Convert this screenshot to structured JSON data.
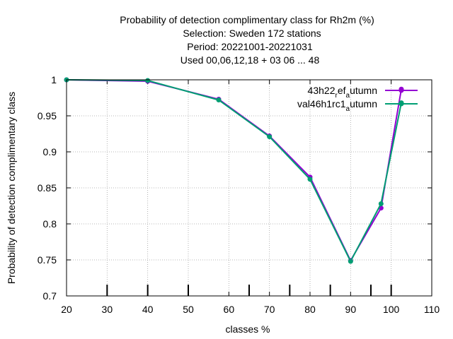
{
  "chart_data": {
    "type": "line",
    "title_lines": [
      "Probability of detection complimentary class  for Rh2m (%)",
      "Selection: Sweden     172 stations",
      "Period: 20221001-20221031",
      "Used  00,06,12,18  + 03 06 ... 48"
    ],
    "xlabel": "classes %",
    "ylabel": "Probability of detection complimentary class",
    "xlim": [
      20,
      110
    ],
    "ylim": [
      0.7,
      1.0
    ],
    "x_ticks": [
      20,
      30,
      40,
      50,
      60,
      70,
      80,
      90,
      100,
      110
    ],
    "y_ticks": [
      0.7,
      0.75,
      0.8,
      0.85,
      0.9,
      0.95,
      1.0
    ],
    "y_tick_labels": [
      "0.7",
      "0.75",
      "0.8",
      "0.85",
      "0.9",
      "0.95",
      "1"
    ],
    "class_marks": [
      30,
      40,
      50,
      65,
      75,
      85,
      95,
      100
    ],
    "grid": true,
    "legend_position": "top-right",
    "series": [
      {
        "name_main": "43h22",
        "name_sub1": "r",
        "name_mid": "ef",
        "name_sub2": "a",
        "name_tail": "utumn",
        "color": "#9400d3",
        "marker": "filled-circle",
        "x": [
          20,
          40,
          57.5,
          70,
          80,
          90,
          97.5,
          102.5
        ],
        "y": [
          1.0,
          0.998,
          0.973,
          0.922,
          0.865,
          0.749,
          0.822,
          0.987
        ]
      },
      {
        "name_main": "val46h1rc1",
        "name_sub1": "",
        "name_mid": "",
        "name_sub2": "a",
        "name_tail": "utumn",
        "color": "#009e73",
        "marker": "filled-circle",
        "x": [
          20,
          40,
          57.5,
          70,
          80,
          90,
          97.5,
          102.5
        ],
        "y": [
          1.0,
          0.999,
          0.972,
          0.921,
          0.862,
          0.748,
          0.828,
          0.968
        ]
      }
    ]
  }
}
